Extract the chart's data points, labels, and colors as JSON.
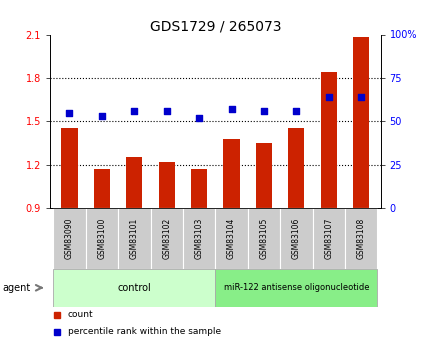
{
  "title": "GDS1729 / 265073",
  "samples": [
    "GSM83090",
    "GSM83100",
    "GSM83101",
    "GSM83102",
    "GSM83103",
    "GSM83104",
    "GSM83105",
    "GSM83106",
    "GSM83107",
    "GSM83108"
  ],
  "red_values": [
    1.45,
    1.17,
    1.25,
    1.22,
    1.17,
    1.38,
    1.35,
    1.45,
    1.84,
    2.08
  ],
  "blue_values": [
    55,
    53,
    56,
    56,
    52,
    57,
    56,
    56,
    64,
    64
  ],
  "ylim_left": [
    0.9,
    2.1
  ],
  "ylim_right": [
    0,
    100
  ],
  "yticks_left": [
    0.9,
    1.2,
    1.5,
    1.8,
    2.1
  ],
  "yticks_right": [
    0,
    25,
    50,
    75,
    100
  ],
  "ytick_labels_right": [
    "0",
    "25",
    "50",
    "75",
    "100%"
  ],
  "hlines": [
    1.2,
    1.5,
    1.8
  ],
  "bar_color": "#cc2200",
  "dot_color": "#0000cc",
  "control_samples": 5,
  "agent_label": "agent",
  "group1_label": "control",
  "group2_label": "miR-122 antisense oligonucleotide",
  "legend_count": "count",
  "legend_pct": "percentile rank within the sample",
  "bg_sample": "#cccccc",
  "bg_control": "#ccffcc",
  "bg_treatment": "#88ee88",
  "title_fontsize": 10,
  "tick_fontsize": 7,
  "bar_width": 0.5
}
